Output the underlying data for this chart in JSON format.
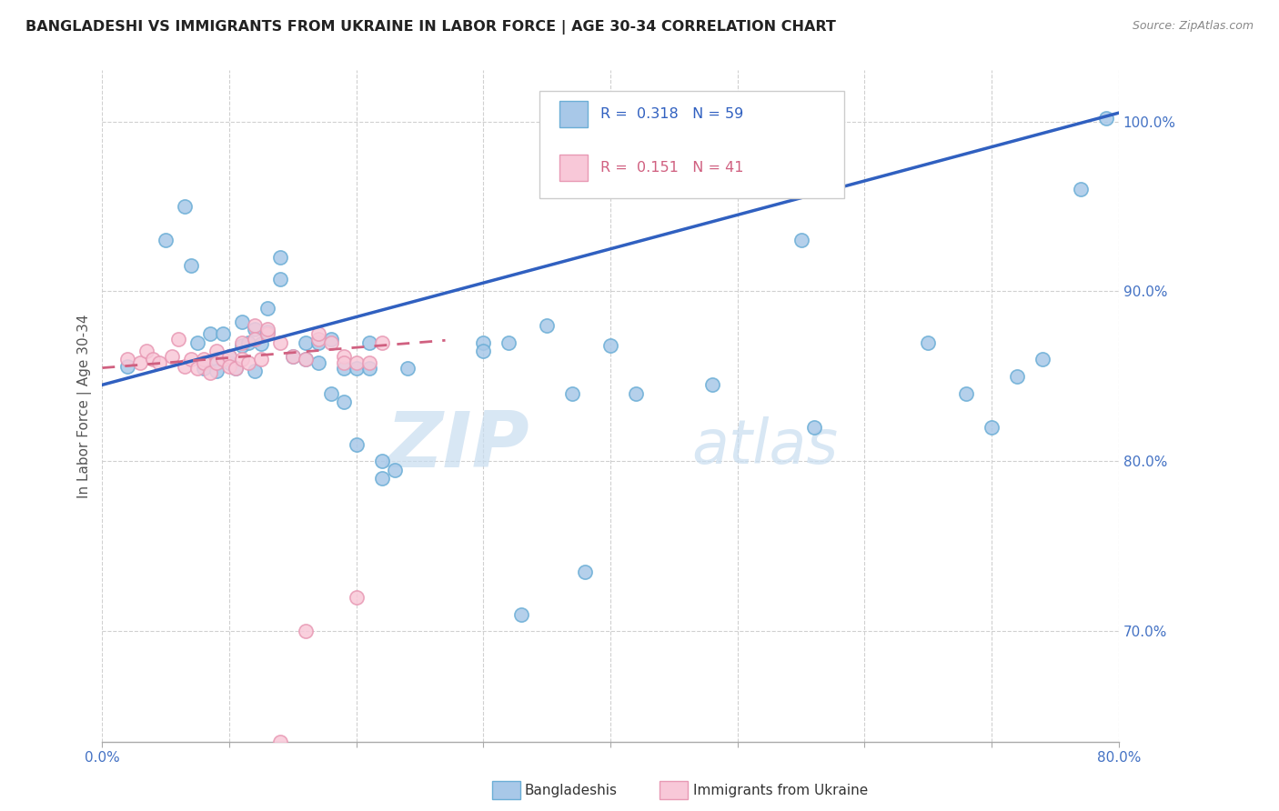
{
  "title": "BANGLADESHI VS IMMIGRANTS FROM UKRAINE IN LABOR FORCE | AGE 30-34 CORRELATION CHART",
  "source": "Source: ZipAtlas.com",
  "ylabel": "In Labor Force | Age 30-34",
  "xmin": 0.0,
  "xmax": 0.8,
  "ymin": 0.635,
  "ymax": 1.03,
  "yticks": [
    0.7,
    0.8,
    0.9,
    1.0
  ],
  "ytick_labels": [
    "70.0%",
    "80.0%",
    "90.0%",
    "100.0%"
  ],
  "xticks": [
    0.0,
    0.1,
    0.2,
    0.3,
    0.4,
    0.5,
    0.6,
    0.7,
    0.8
  ],
  "blue_color": "#a8c8e8",
  "blue_edge": "#6baed6",
  "pink_color": "#f8c8d8",
  "pink_edge": "#e899b4",
  "trend_blue": "#3060c0",
  "trend_pink": "#d06080",
  "legend_R_blue": "0.318",
  "legend_N_blue": "59",
  "legend_R_pink": "0.151",
  "legend_N_pink": "41",
  "legend_label_blue": "Bangladeshis",
  "legend_label_pink": "Immigrants from Ukraine",
  "watermark_zip": "ZIP",
  "watermark_atlas": "atlas",
  "blue_x": [
    0.02,
    0.05,
    0.065,
    0.07,
    0.075,
    0.08,
    0.085,
    0.09,
    0.09,
    0.095,
    0.1,
    0.1,
    0.105,
    0.11,
    0.11,
    0.115,
    0.12,
    0.12,
    0.125,
    0.13,
    0.13,
    0.14,
    0.14,
    0.15,
    0.16,
    0.16,
    0.17,
    0.17,
    0.18,
    0.18,
    0.19,
    0.19,
    0.2,
    0.2,
    0.21,
    0.21,
    0.22,
    0.22,
    0.23,
    0.24,
    0.3,
    0.3,
    0.32,
    0.33,
    0.35,
    0.37,
    0.38,
    0.4,
    0.42,
    0.48,
    0.55,
    0.56,
    0.65,
    0.68,
    0.7,
    0.72,
    0.74,
    0.77,
    0.79
  ],
  "blue_y": [
    0.856,
    0.93,
    0.95,
    0.915,
    0.87,
    0.855,
    0.875,
    0.86,
    0.853,
    0.875,
    0.858,
    0.862,
    0.855,
    0.882,
    0.868,
    0.87,
    0.878,
    0.853,
    0.869,
    0.89,
    0.876,
    0.92,
    0.907,
    0.862,
    0.87,
    0.86,
    0.87,
    0.858,
    0.872,
    0.84,
    0.855,
    0.835,
    0.855,
    0.81,
    0.87,
    0.855,
    0.8,
    0.79,
    0.795,
    0.855,
    0.87,
    0.865,
    0.87,
    0.71,
    0.88,
    0.84,
    0.735,
    0.868,
    0.84,
    0.845,
    0.93,
    0.82,
    0.87,
    0.84,
    0.82,
    0.85,
    0.86,
    0.96,
    1.002
  ],
  "pink_x": [
    0.02,
    0.03,
    0.035,
    0.04,
    0.045,
    0.055,
    0.06,
    0.065,
    0.07,
    0.075,
    0.08,
    0.08,
    0.085,
    0.09,
    0.09,
    0.095,
    0.1,
    0.1,
    0.105,
    0.11,
    0.11,
    0.115,
    0.12,
    0.12,
    0.125,
    0.13,
    0.14,
    0.15,
    0.16,
    0.17,
    0.18,
    0.19,
    0.19,
    0.2,
    0.2,
    0.21,
    0.22,
    0.16,
    0.17,
    0.13,
    0.14
  ],
  "pink_y": [
    0.86,
    0.858,
    0.865,
    0.86,
    0.858,
    0.862,
    0.872,
    0.856,
    0.86,
    0.855,
    0.86,
    0.858,
    0.852,
    0.865,
    0.858,
    0.86,
    0.862,
    0.856,
    0.855,
    0.87,
    0.86,
    0.858,
    0.88,
    0.872,
    0.86,
    0.875,
    0.87,
    0.862,
    0.86,
    0.872,
    0.87,
    0.862,
    0.858,
    0.858,
    0.72,
    0.858,
    0.87,
    0.7,
    0.875,
    0.878,
    0.635
  ]
}
